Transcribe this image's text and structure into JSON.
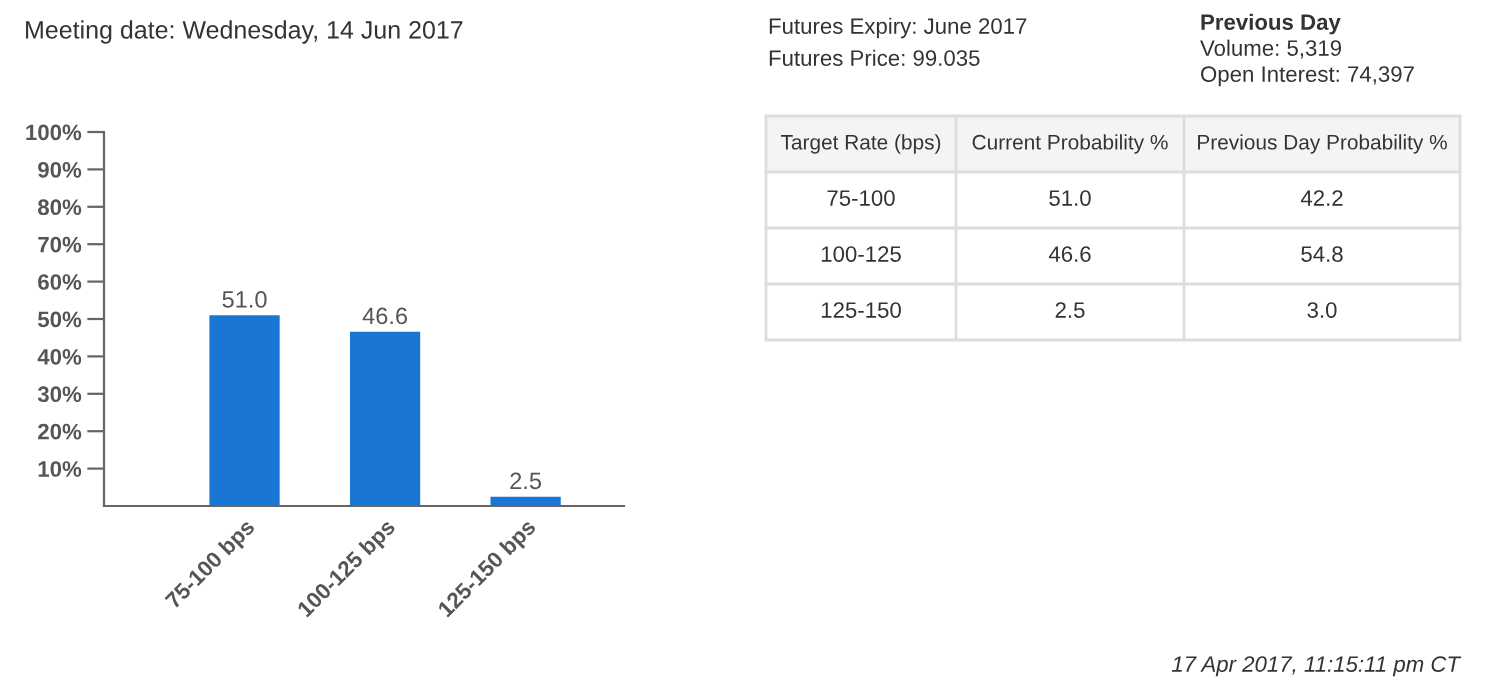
{
  "chart_data": [
    {
      "type": "bar",
      "title": "Meeting date: Wednesday, 14 Jun 2017",
      "categories": [
        "75-100 bps",
        "100-125 bps",
        "125-150 bps"
      ],
      "values": [
        51.0,
        46.6,
        2.5
      ],
      "color": "#1976d2",
      "ylim": [
        0,
        100
      ],
      "yticks": [
        {
          "value": 10,
          "label": "10%"
        },
        {
          "value": 20,
          "label": "20%"
        },
        {
          "value": 30,
          "label": "30%"
        },
        {
          "value": 40,
          "label": "40%"
        },
        {
          "value": 50,
          "label": "50%"
        },
        {
          "value": 60,
          "label": "60%"
        },
        {
          "value": 70,
          "label": "70%"
        },
        {
          "value": 80,
          "label": "80%"
        },
        {
          "value": 90,
          "label": "90%"
        },
        {
          "value": 100,
          "label": "100%"
        }
      ],
      "value_labels": [
        "51.0",
        "46.6",
        "2.5"
      ],
      "grid": false,
      "legend": false
    },
    {
      "type": "other",
      "annotations": [
        "Futures Expiry: June 2017",
        "Futures Price: 99.035",
        "Previous Day",
        "Volume: 5,319",
        "Open Interest: 74,397",
        "17 Apr 2017, 11:15:11 pm CT",
        "Target Rate (bps)",
        "Current Probability %",
        "Previous Day Probability %",
        "75-100",
        "51.0",
        "42.2",
        "100-125",
        "46.6",
        "54.8",
        "125-150",
        "2.5",
        "3.0"
      ]
    }
  ]
}
